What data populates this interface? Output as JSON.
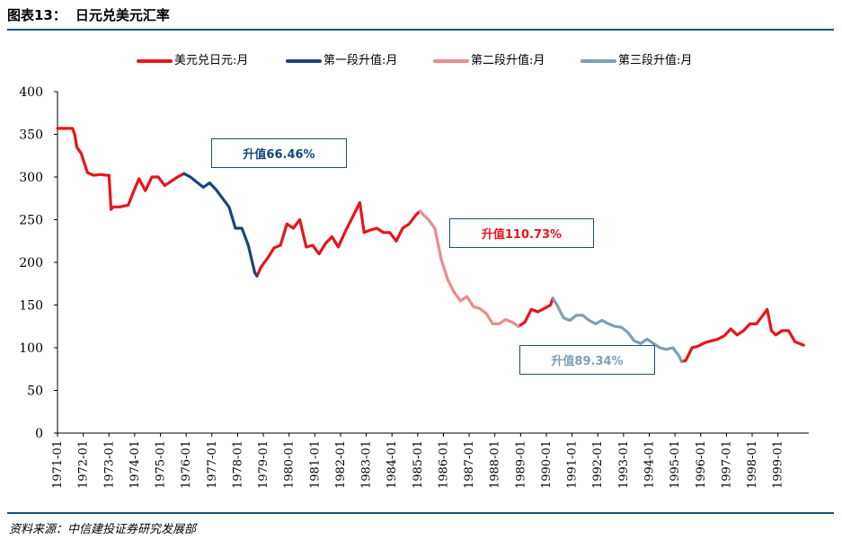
{
  "header": {
    "figure_no": "图表13：",
    "title": "日元兑美元汇率"
  },
  "source": "资料来源：中信建投证券研究发展部",
  "chart_data": {
    "type": "line",
    "title": "日元兑美元汇率",
    "xlabel": "",
    "ylabel": "",
    "ylim": [
      0,
      400
    ],
    "yticks": [
      0,
      50,
      100,
      150,
      200,
      250,
      300,
      350,
      400
    ],
    "xlim": [
      1971.0,
      2000.2
    ],
    "xticks": [
      "1971-01",
      "1972-01",
      "1973-01",
      "1974-01",
      "1975-01",
      "1976-01",
      "1977-01",
      "1978-01",
      "1979-01",
      "1980-01",
      "1981-01",
      "1982-01",
      "1983-01",
      "1984-01",
      "1985-01",
      "1986-01",
      "1987-01",
      "1988-01",
      "1989-01",
      "1990-01",
      "1991-01",
      "1992-01",
      "1993-01",
      "1994-01",
      "1995-01",
      "1996-01",
      "1997-01",
      "1998-01",
      "1999-01"
    ],
    "legend_position": "top",
    "grid": false,
    "series": [
      {
        "name": "美元兑日元:月",
        "color": "#E8141A",
        "x": [
          "1971-01",
          "1971-06",
          "1971-08",
          "1971-09",
          "1971-10",
          "1971-12",
          "1972-03",
          "1972-06",
          "1972-09",
          "1972-12",
          "1973-01",
          "1973-02",
          "1973-03",
          "1973-06",
          "1973-10",
          "1973-12",
          "1974-03",
          "1974-06",
          "1974-09",
          "1974-12",
          "1975-03",
          "1975-06",
          "1975-09",
          "1975-12",
          "1976-03",
          "1976-06",
          "1976-08",
          "1976-10",
          "1976-12"
        ],
        "values": [
          357,
          357,
          357,
          350,
          335,
          328,
          305,
          302,
          303,
          302,
          302,
          262,
          265,
          265,
          267,
          280,
          298,
          284,
          300,
          300,
          290,
          295,
          300,
          304,
          300,
          295,
          290,
          295,
          292
        ],
        "segments": [
          {
            "x": [
              "1971-01",
              "1971-06",
              "1971-08",
              "1971-09",
              "1971-10",
              "1971-12",
              "1972-03",
              "1972-06",
              "1972-09",
              "1972-12",
              "1973-01",
              "1973-02",
              "1973-03",
              "1973-06",
              "1973-10",
              "1973-12",
              "1974-03",
              "1974-06",
              "1974-09",
              "1974-12",
              "1975-03",
              "1975-06",
              "1975-09",
              "1975-12"
            ],
            "values": [
              357,
              357,
              357,
              350,
              335,
              328,
              305,
              302,
              303,
              302,
              302,
              262,
              265,
              265,
              267,
              280,
              298,
              284,
              300,
              300,
              290,
              295,
              300,
              304
            ]
          },
          {
            "x": [
              "1978-10",
              "1978-12",
              "1979-03",
              "1979-06",
              "1979-09",
              "1979-12",
              "1980-03",
              "1980-06",
              "1980-09",
              "1980-12",
              "1981-03",
              "1981-06",
              "1981-09",
              "1981-12",
              "1982-03",
              "1982-06",
              "1982-10",
              "1982-12",
              "1983-03",
              "1983-06",
              "1983-09",
              "1983-12",
              "1984-03",
              "1984-06",
              "1984-09",
              "1984-12",
              "1985-02"
            ],
            "values": [
              184,
              195,
              205,
              217,
              220,
              245,
              240,
              250,
              218,
              220,
              210,
              222,
              230,
              218,
              235,
              250,
              270,
              235,
              238,
              240,
              235,
              235,
              225,
              240,
              245,
              255,
              260
            ]
          },
          {
            "x": [
              "1988-12",
              "1989-03",
              "1989-06",
              "1989-09",
              "1989-12",
              "1990-03",
              "1990-04"
            ],
            "values": [
              125,
              130,
              145,
              142,
              146,
              150,
              158
            ]
          },
          {
            "x": [
              "1995-04",
              "1995-06",
              "1995-09",
              "1995-12",
              "1996-03",
              "1996-06",
              "1996-09",
              "1996-12",
              "1997-03",
              "1997-06",
              "1997-09",
              "1997-12",
              "1998-03",
              "1998-06",
              "1998-08",
              "1998-10",
              "1998-12",
              "1999-03",
              "1999-06",
              "1999-09",
              "1999-12",
              "2000-01"
            ],
            "values": [
              84,
              85,
              100,
              102,
              106,
              108,
              110,
              114,
              122,
              115,
              120,
              128,
              128,
              138,
              145,
              120,
              115,
              120,
              120,
              107,
              104,
              103
            ]
          }
        ]
      },
      {
        "name": "第一段升值:月",
        "color": "#17467A",
        "x": [
          "1975-12",
          "1976-03",
          "1976-06",
          "1976-09",
          "1976-12",
          "1977-03",
          "1977-06",
          "1977-09",
          "1977-12",
          "1978-03",
          "1978-06",
          "1978-09",
          "1978-10"
        ],
        "values": [
          304,
          300,
          294,
          288,
          293,
          285,
          275,
          265,
          240,
          240,
          220,
          188,
          184
        ]
      },
      {
        "name": "第二段升值:月",
        "color": "#F08A8C",
        "x": [
          "1985-02",
          "1985-06",
          "1985-09",
          "1985-12",
          "1986-03",
          "1986-06",
          "1986-09",
          "1986-12",
          "1987-03",
          "1987-06",
          "1987-09",
          "1987-12",
          "1988-03",
          "1988-06",
          "1988-09",
          "1988-12"
        ],
        "values": [
          260,
          250,
          240,
          203,
          180,
          165,
          155,
          160,
          148,
          146,
          140,
          128,
          128,
          133,
          130,
          125
        ]
      },
      {
        "name": "第三段升值:月",
        "color": "#7F9EB7",
        "x": [
          "1990-04",
          "1990-06",
          "1990-09",
          "1990-12",
          "1991-03",
          "1991-06",
          "1991-09",
          "1991-12",
          "1992-03",
          "1992-06",
          "1992-09",
          "1992-12",
          "1993-03",
          "1993-06",
          "1993-09",
          "1993-12",
          "1994-03",
          "1994-06",
          "1994-09",
          "1994-12",
          "1995-03",
          "1995-04"
        ],
        "values": [
          158,
          150,
          135,
          132,
          138,
          138,
          132,
          128,
          132,
          128,
          125,
          124,
          118,
          108,
          105,
          110,
          105,
          100,
          98,
          100,
          90,
          84
        ]
      }
    ],
    "annotations": [
      {
        "text": "升值66.46%",
        "color": "#17467A"
      },
      {
        "text": "升值110.73%",
        "color": "#E8141A"
      },
      {
        "text": "升值89.34%",
        "color": "#7F9EB7"
      }
    ]
  }
}
